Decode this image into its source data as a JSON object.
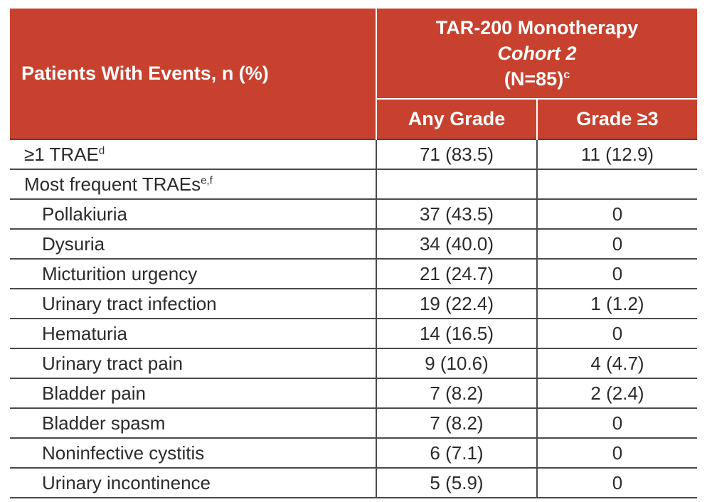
{
  "header": {
    "row_label": "Patients With Events, n (%)",
    "group_title": "TAR-200 Monotherapy",
    "group_cohort": "Cohort 2",
    "group_n": "(N=85)",
    "group_n_sup": "c",
    "col_any": "Any Grade",
    "col_grade3": "Grade ≥3"
  },
  "rows": [
    {
      "label": "≥1 TRAE",
      "sup": "d",
      "any": "71 (83.5)",
      "g3": "11 (12.9)"
    },
    {
      "label": "Most frequent TRAEs",
      "sup": "e,f",
      "any": "",
      "g3": ""
    },
    {
      "label": "Pollakiuria",
      "sup": "",
      "any": "37 (43.5)",
      "g3": "0"
    },
    {
      "label": "Dysuria",
      "sup": "",
      "any": "34 (40.0)",
      "g3": "0"
    },
    {
      "label": "Micturition urgency",
      "sup": "",
      "any": "21 (24.7)",
      "g3": "0"
    },
    {
      "label": "Urinary tract infection",
      "sup": "",
      "any": "19 (22.4)",
      "g3": "1 (1.2)"
    },
    {
      "label": "Hematuria",
      "sup": "",
      "any": "14 (16.5)",
      "g3": "0"
    },
    {
      "label": "Urinary tract pain",
      "sup": "",
      "any": "9 (10.6)",
      "g3": "4 (4.7)"
    },
    {
      "label": "Bladder pain",
      "sup": "",
      "any": "7 (8.2)",
      "g3": "2 (2.4)"
    },
    {
      "label": "Bladder spasm",
      "sup": "",
      "any": "7 (8.2)",
      "g3": "0"
    },
    {
      "label": "Noninfective cystitis",
      "sup": "",
      "any": "6 (7.1)",
      "g3": "0"
    },
    {
      "label": "Urinary incontinence",
      "sup": "",
      "any": "5 (5.9)",
      "g3": "0"
    }
  ],
  "colors": {
    "header_bg": "#c8412e",
    "header_text": "#ffffff",
    "body_text": "#2b2b2b",
    "rule": "#4a4a4a"
  }
}
